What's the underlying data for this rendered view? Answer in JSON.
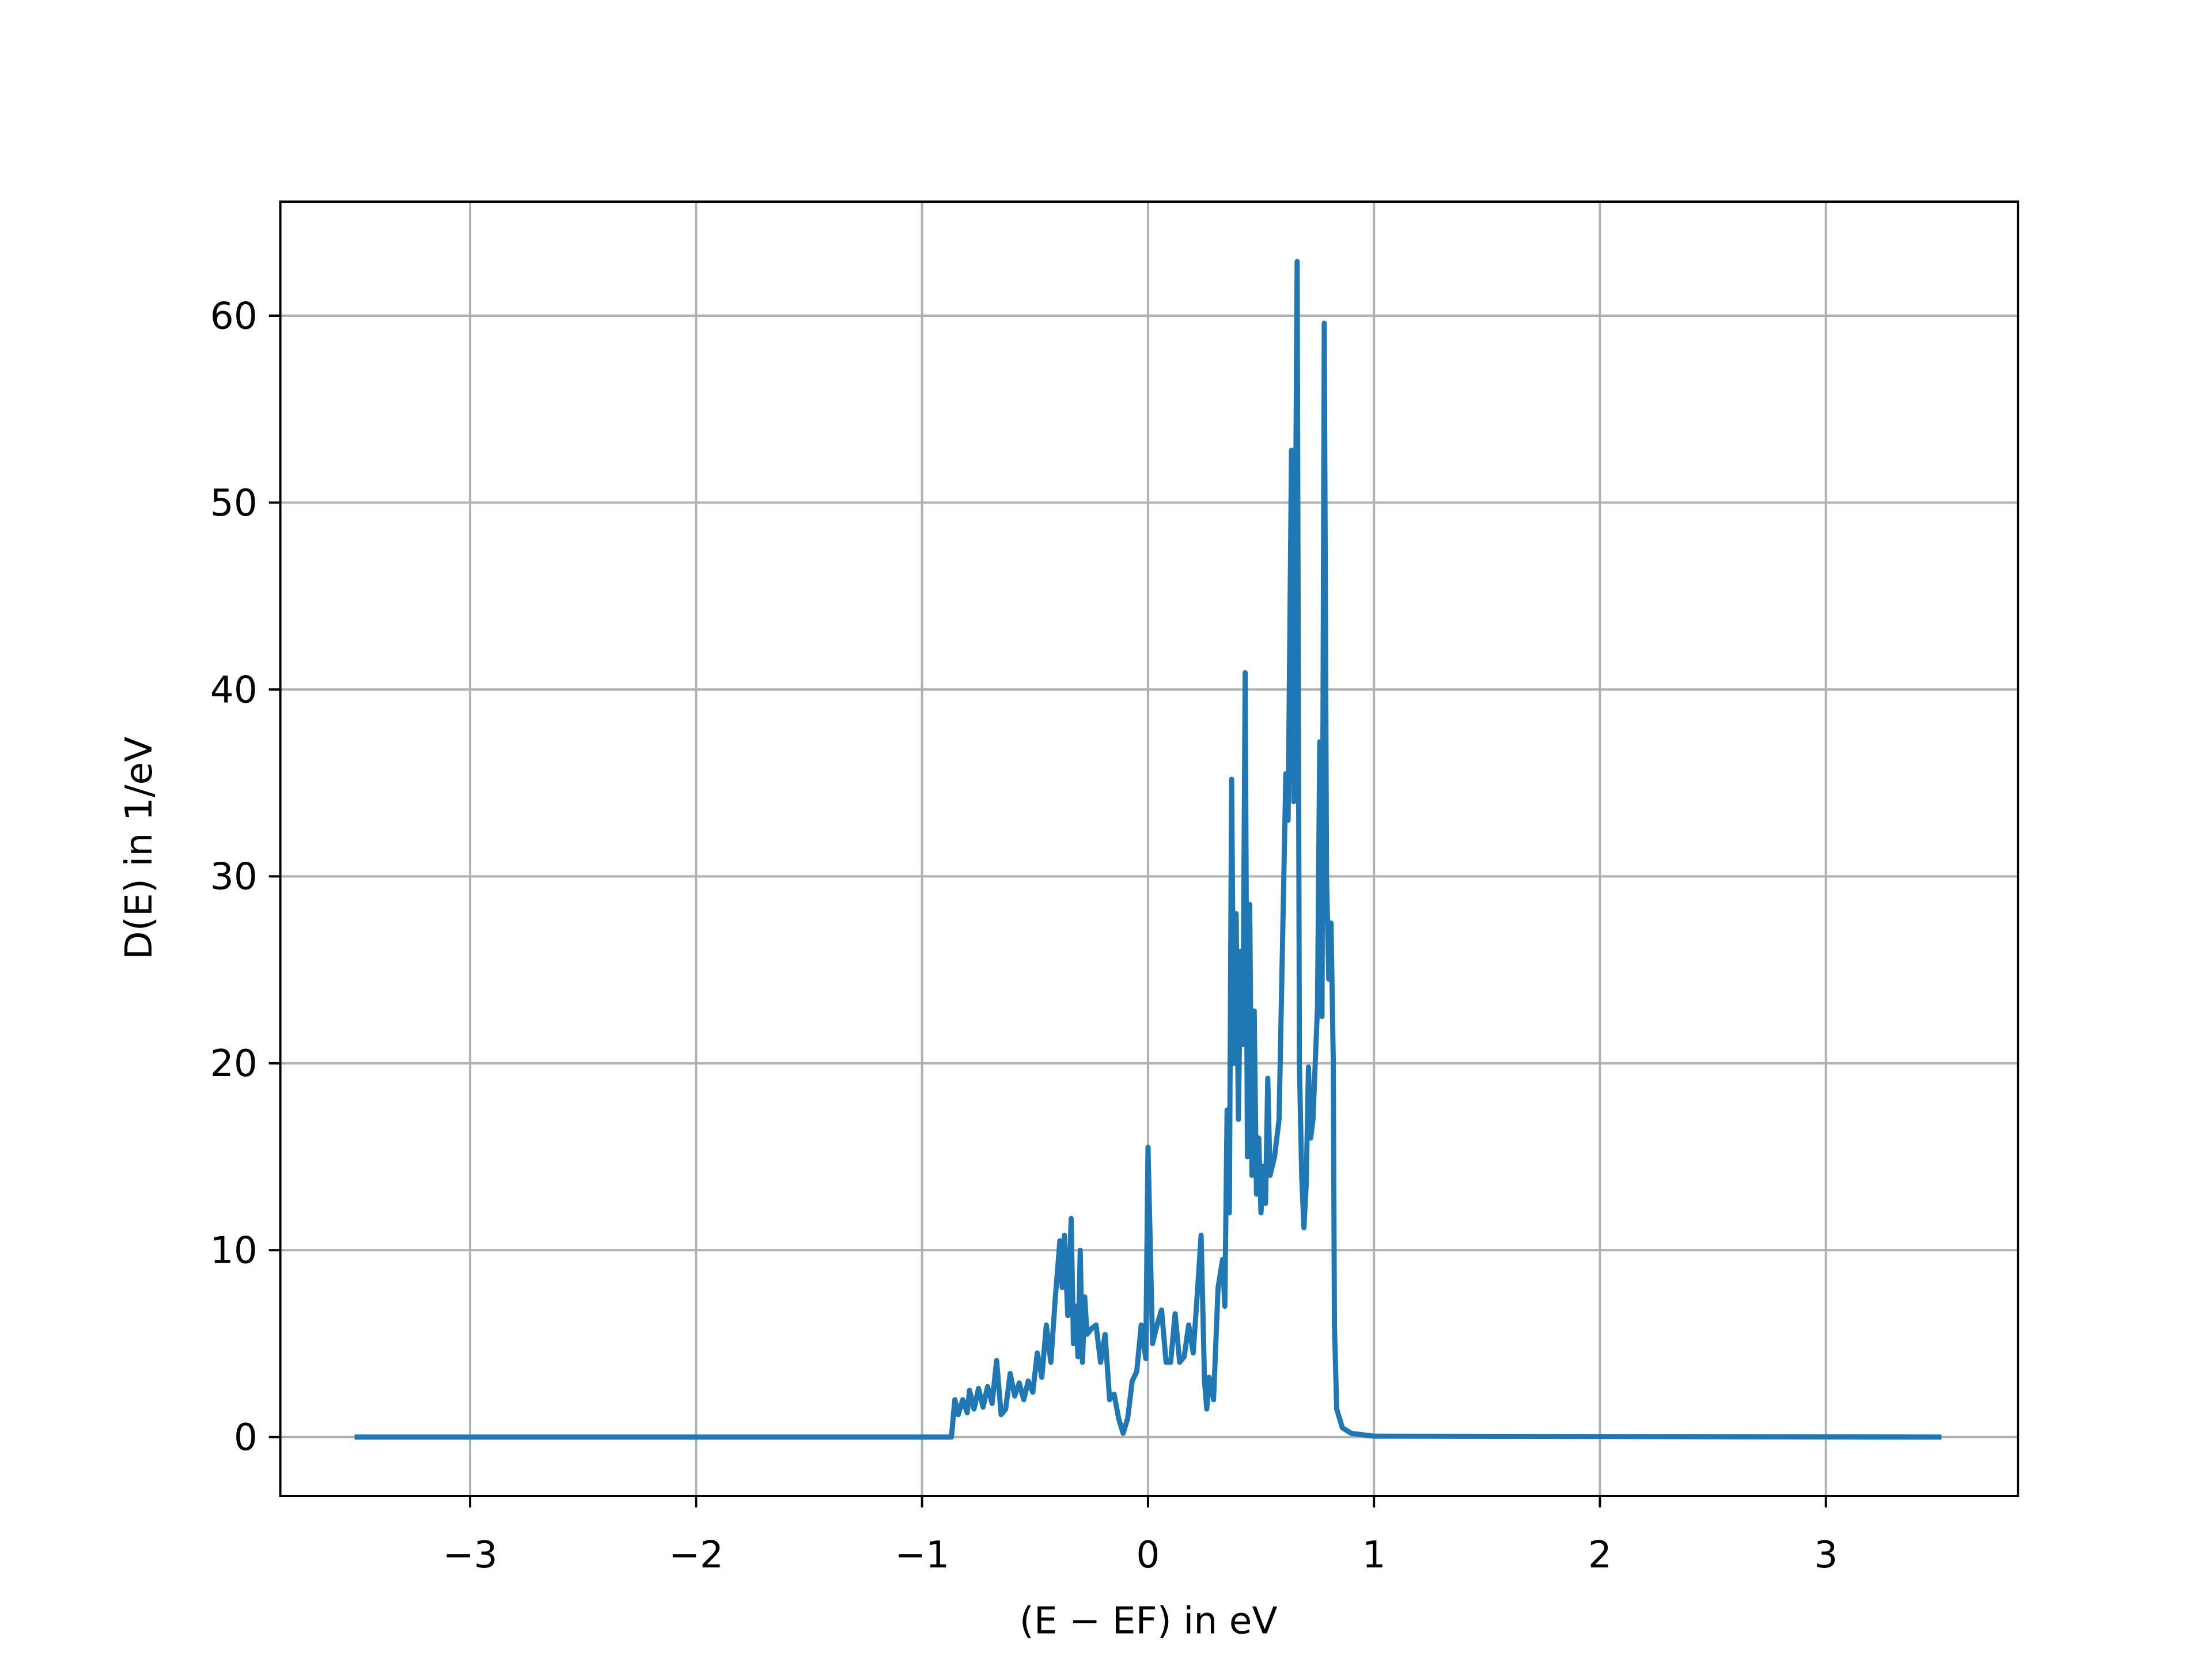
{
  "chart_data": {
    "type": "line",
    "xlabel": "(E − EF) in eV",
    "ylabel": "D(E) in 1/eV",
    "xlim": [
      -3.84,
      3.85
    ],
    "ylim": [
      -3.15,
      66.1
    ],
    "xticks": [
      {
        "value": -3,
        "label": "−3"
      },
      {
        "value": -2,
        "label": "−2"
      },
      {
        "value": -1,
        "label": "−1"
      },
      0,
      1,
      2,
      3
    ],
    "yticks": [
      0,
      10,
      20,
      30,
      40,
      50,
      60
    ],
    "grid": true,
    "series": [
      {
        "color": "#1f77b4",
        "x": [
          -3.5,
          -0.87,
          -0.855,
          -0.84,
          -0.82,
          -0.8,
          -0.79,
          -0.77,
          -0.75,
          -0.73,
          -0.71,
          -0.69,
          -0.67,
          -0.65,
          -0.63,
          -0.61,
          -0.59,
          -0.57,
          -0.55,
          -0.53,
          -0.51,
          -0.49,
          -0.47,
          -0.45,
          -0.43,
          -0.41,
          -0.39,
          -0.38,
          -0.37,
          -0.355,
          -0.34,
          -0.33,
          -0.32,
          -0.31,
          -0.3,
          -0.29,
          -0.28,
          -0.27,
          -0.25,
          -0.23,
          -0.21,
          -0.19,
          -0.17,
          -0.15,
          -0.13,
          -0.11,
          -0.09,
          -0.07,
          -0.05,
          -0.03,
          -0.01,
          0.0,
          0.02,
          0.04,
          0.06,
          0.08,
          0.1,
          0.12,
          0.14,
          0.16,
          0.18,
          0.2,
          0.22,
          0.235,
          0.25,
          0.26,
          0.27,
          0.29,
          0.31,
          0.33,
          0.34,
          0.35,
          0.36,
          0.37,
          0.38,
          0.39,
          0.4,
          0.41,
          0.42,
          0.43,
          0.44,
          0.45,
          0.46,
          0.47,
          0.48,
          0.49,
          0.5,
          0.51,
          0.52,
          0.53,
          0.54,
          0.56,
          0.58,
          0.61,
          0.62,
          0.635,
          0.645,
          0.66,
          0.67,
          0.68,
          0.69,
          0.7,
          0.71,
          0.72,
          0.73,
          0.74,
          0.75,
          0.76,
          0.77,
          0.78,
          0.79,
          0.8,
          0.81,
          0.82,
          0.825,
          0.835,
          0.86,
          0.9,
          1.0,
          3.5
        ],
        "values": [
          0,
          0,
          2.0,
          1.2,
          2.0,
          1.3,
          2.5,
          1.5,
          2.6,
          1.6,
          2.7,
          1.8,
          4.1,
          1.2,
          1.5,
          3.4,
          2.2,
          2.9,
          2.0,
          3.0,
          2.4,
          4.5,
          3.2,
          6.0,
          4.0,
          7.5,
          10.5,
          8.0,
          10.8,
          6.5,
          11.7,
          5.0,
          7.0,
          4.3,
          10.0,
          4.0,
          7.5,
          5.5,
          5.8,
          6.0,
          4.0,
          5.5,
          2.0,
          2.3,
          1.0,
          0.2,
          1.0,
          3.0,
          3.5,
          6.0,
          4.2,
          15.5,
          5.0,
          6.0,
          6.8,
          4.0,
          4.0,
          6.6,
          4.0,
          4.3,
          6.0,
          4.5,
          8.0,
          10.8,
          3.0,
          1.5,
          3.2,
          2.0,
          8.0,
          9.5,
          7.0,
          17.5,
          12.0,
          35.2,
          20.0,
          28.0,
          17.0,
          26.0,
          21.0,
          40.9,
          15.0,
          28.5,
          14.0,
          22.8,
          13.0,
          16.0,
          12.0,
          14.5,
          12.5,
          19.2,
          14.0,
          15.0,
          17.0,
          35.5,
          33.0,
          52.8,
          34.0,
          62.9,
          20.0,
          14.0,
          11.2,
          13.5,
          19.8,
          16.0,
          17.0,
          20.0,
          23.0,
          37.2,
          22.5,
          59.6,
          30.0,
          24.5,
          27.5,
          20.0,
          6.0,
          1.5,
          0.5,
          0.2,
          0.05,
          0
        ]
      }
    ]
  }
}
